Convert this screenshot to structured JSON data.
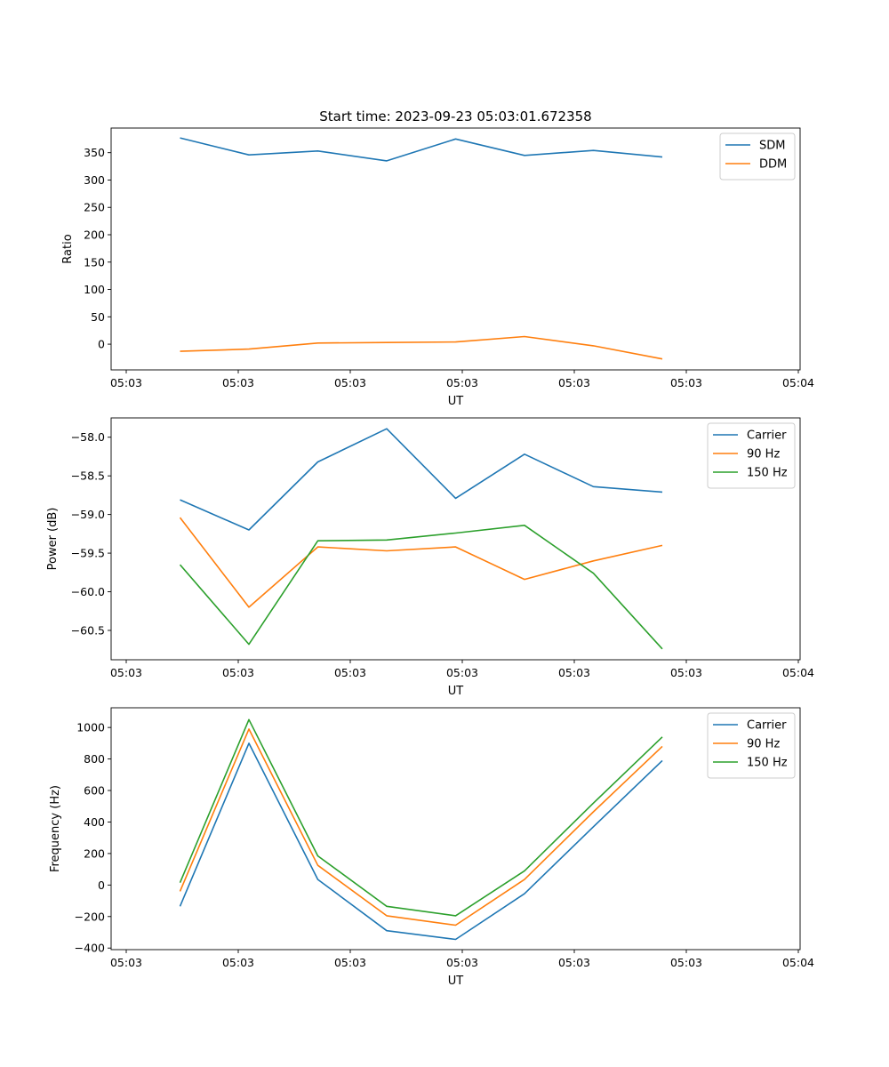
{
  "chart_data": [
    {
      "type": "line",
      "title": "Start time: 2023-09-23 05:03:01.672358",
      "xlabel": "UT",
      "ylabel": "Ratio",
      "xticklabels": [
        "05:03",
        "05:03",
        "05:03",
        "05:03",
        "05:03",
        "05:03",
        "05:04"
      ],
      "yticks": [
        0,
        50,
        100,
        150,
        200,
        250,
        300,
        350
      ],
      "ylim": [
        -47,
        395
      ],
      "xlim": [
        0,
        1
      ],
      "x": [
        0.1,
        0.2,
        0.3,
        0.4,
        0.5,
        0.6,
        0.7,
        0.8
      ],
      "series": [
        {
          "name": "SDM",
          "color": "#1f77b4",
          "values": [
            377,
            346,
            353,
            335,
            375,
            345,
            354,
            342
          ]
        },
        {
          "name": "DDM",
          "color": "#ff7f0e",
          "values": [
            -13,
            -9,
            2,
            3,
            4,
            14,
            -3,
            -27
          ]
        }
      ],
      "legend": "top-right"
    },
    {
      "type": "line",
      "title": "",
      "xlabel": "UT",
      "ylabel": "Power (dB)",
      "xticklabels": [
        "05:03",
        "05:03",
        "05:03",
        "05:03",
        "05:03",
        "05:03",
        "05:04"
      ],
      "yticks": [
        -60.5,
        -60.0,
        -59.5,
        -59.0,
        -58.5,
        -58.0
      ],
      "yticklabels": [
        "-60.5",
        "-60.0",
        "-59.5",
        "-59.0",
        "-58.5",
        "-58.0"
      ],
      "ylim": [
        -60.88,
        -57.75
      ],
      "xlim": [
        0,
        1
      ],
      "x": [
        0.1,
        0.2,
        0.3,
        0.4,
        0.5,
        0.6,
        0.7,
        0.8
      ],
      "series": [
        {
          "name": "Carrier",
          "color": "#1f77b4",
          "values": [
            -58.81,
            -59.2,
            -58.32,
            -57.89,
            -58.79,
            -58.22,
            -58.64,
            -58.71
          ]
        },
        {
          "name": "90 Hz",
          "color": "#ff7f0e",
          "values": [
            -59.04,
            -60.2,
            -59.42,
            -59.47,
            -59.42,
            -59.84,
            -59.6,
            -59.4
          ]
        },
        {
          "name": "150 Hz",
          "color": "#2ca02c",
          "values": [
            -59.65,
            -60.68,
            -59.34,
            -59.33,
            -59.24,
            -59.14,
            -59.76,
            -60.74
          ]
        }
      ],
      "legend": "top-right"
    },
    {
      "type": "line",
      "title": "",
      "xlabel": "UT",
      "ylabel": "Frequency (Hz)",
      "xticklabels": [
        "05:03",
        "05:03",
        "05:03",
        "05:03",
        "05:03",
        "05:03",
        "05:04"
      ],
      "yticks": [
        -400,
        -200,
        0,
        200,
        400,
        600,
        800,
        1000
      ],
      "ylim": [
        -410,
        1125
      ],
      "xlim": [
        0,
        1
      ],
      "x": [
        0.1,
        0.2,
        0.3,
        0.4,
        0.5,
        0.6,
        0.7,
        0.8
      ],
      "series": [
        {
          "name": "Carrier",
          "color": "#1f77b4",
          "values": [
            -135,
            900,
            35,
            -290,
            -345,
            -55,
            370,
            790
          ]
        },
        {
          "name": "90 Hz",
          "color": "#ff7f0e",
          "values": [
            -40,
            990,
            125,
            -195,
            -255,
            35,
            465,
            880
          ]
        },
        {
          "name": "150 Hz",
          "color": "#2ca02c",
          "values": [
            15,
            1050,
            185,
            -135,
            -195,
            90,
            520,
            940
          ]
        }
      ],
      "legend": "top-right"
    }
  ]
}
